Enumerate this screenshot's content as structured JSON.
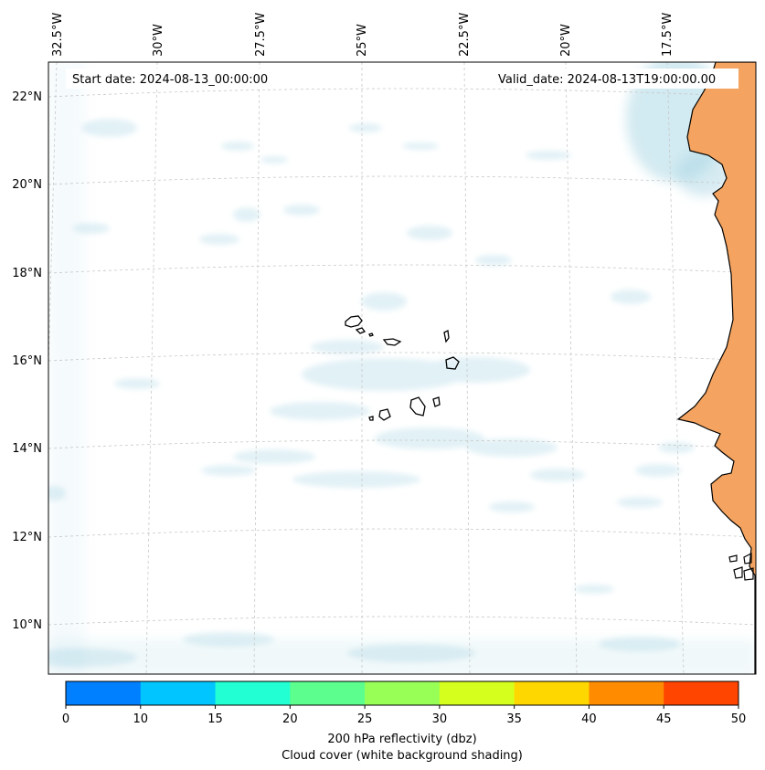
{
  "map": {
    "start_label": "Start date: 2024-08-13_00:00:00",
    "valid_label": "Valid_date: 2024-08-13T19:00:00.00",
    "lon_labels": [
      "32.5°W",
      "30°W",
      "27.5°W",
      "25°W",
      "22.5°W",
      "20°W",
      "17.5°W"
    ],
    "lat_labels": [
      "22°N",
      "20°N",
      "18°N",
      "16°N",
      "14°N",
      "12°N",
      "10°N"
    ],
    "land_color": "#f4a460",
    "cloud_color": "#add8e6",
    "coastline_color": "#000000",
    "gridlines": true
  },
  "colorbar": {
    "ticks": [
      "0",
      "10",
      "15",
      "20",
      "25",
      "30",
      "35",
      "40",
      "45",
      "50"
    ],
    "colors": [
      "#0080ff",
      "#00c5ff",
      "#22ffd3",
      "#5cff8e",
      "#98ff56",
      "#d5ff1d",
      "#ffd700",
      "#ff8c00",
      "#ff4500"
    ],
    "label_line1": "200 hPa reflectivity (dbz)",
    "label_line2": "Cloud cover (white background shading)"
  }
}
